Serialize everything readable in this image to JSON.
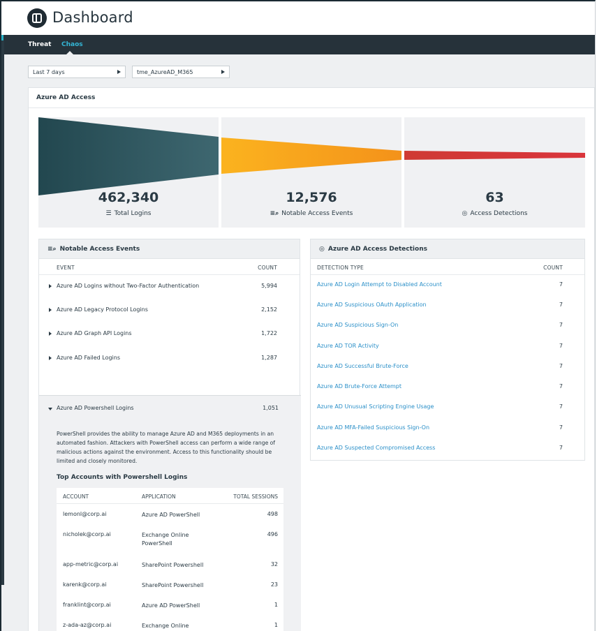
{
  "header": {
    "title": "Dashboard"
  },
  "nav": {
    "tabs": [
      {
        "label": "Threat",
        "active": false
      },
      {
        "label": "Chaos",
        "active": true
      }
    ]
  },
  "filters": {
    "time_range": "Last 7 days",
    "tenant": "tme_AzureAD_M365"
  },
  "panel": {
    "title": "Azure AD Access"
  },
  "funnel": {
    "stages": [
      {
        "value": "462,340",
        "label": "Total Logins",
        "icon": "list-icon",
        "color": "#2d5560"
      },
      {
        "value": "12,576",
        "label": "Notable Access Events",
        "icon": "filter-search-icon",
        "color": "#f7a21b"
      },
      {
        "value": "63",
        "label": "Access Detections",
        "icon": "target-icon",
        "color": "#d33a3a"
      }
    ]
  },
  "notable": {
    "title": "Notable Access Events",
    "col_event": "EVENT",
    "col_count": "COUNT",
    "rows": [
      {
        "name": "Azure AD Logins without Two-Factor Authentication",
        "count": "5,994"
      },
      {
        "name": "Azure AD Legacy Protocol Logins",
        "count": "2,152"
      },
      {
        "name": "Azure AD Graph API Logins",
        "count": "1,722"
      },
      {
        "name": "Azure AD Failed Logins",
        "count": "1,287"
      }
    ],
    "expanded": {
      "name": "Azure AD Powershell Logins",
      "count": "1,051",
      "description": "PowerShell provides the ability to manage Azure AD and M365 deployments in an automated fashion. Attackers with PowerShell access can perform a wide range of malicious actions against the environment. Access to this functionality should be limited and closely monitored.",
      "top_title": "Top Accounts with Powershell Logins",
      "col_account": "ACCOUNT",
      "col_application": "APPLICATION",
      "col_sessions": "TOTAL SESSIONS",
      "accounts": [
        {
          "account": "lemonl@corp.ai",
          "application": "Azure AD PowerShell",
          "sessions": "498"
        },
        {
          "account": "nicholek@corp.ai",
          "application": "Exchange Online PowerShell",
          "sessions": "496"
        },
        {
          "account": "app-metric@corp.ai",
          "application": "SharePoint Powershell",
          "sessions": "32"
        },
        {
          "account": "karenk@corp.ai",
          "application": "SharePoint Powershell",
          "sessions": "23"
        },
        {
          "account": "franklint@corp.ai",
          "application": "Azure AD PowerShell",
          "sessions": "1"
        },
        {
          "account": "z-ada-az@corp.ai",
          "application": "Exchange Online PowerShell",
          "sessions": "1"
        }
      ]
    }
  },
  "detections": {
    "title": "Azure AD Access Detections",
    "col_type": "DETECTION TYPE",
    "col_count": "COUNT",
    "rows": [
      {
        "name": "Azure AD Login Attempt to Disabled Account",
        "count": "7"
      },
      {
        "name": "Azure AD Suspicious OAuth Application",
        "count": "7"
      },
      {
        "name": "Azure AD Suspicious Sign-On",
        "count": "7"
      },
      {
        "name": "Azure AD TOR Activity",
        "count": "7"
      },
      {
        "name": "Azure AD Successful Brute-Force",
        "count": "7"
      },
      {
        "name": "Azure AD Brute-Force Attempt",
        "count": "7"
      },
      {
        "name": "Azure AD Unusual Scripting Engine Usage",
        "count": "7"
      },
      {
        "name": "Azure AD MFA-Failed Suspicious Sign-On",
        "count": "7"
      },
      {
        "name": "Azure AD Suspected Compromised Access",
        "count": "7"
      }
    ]
  }
}
